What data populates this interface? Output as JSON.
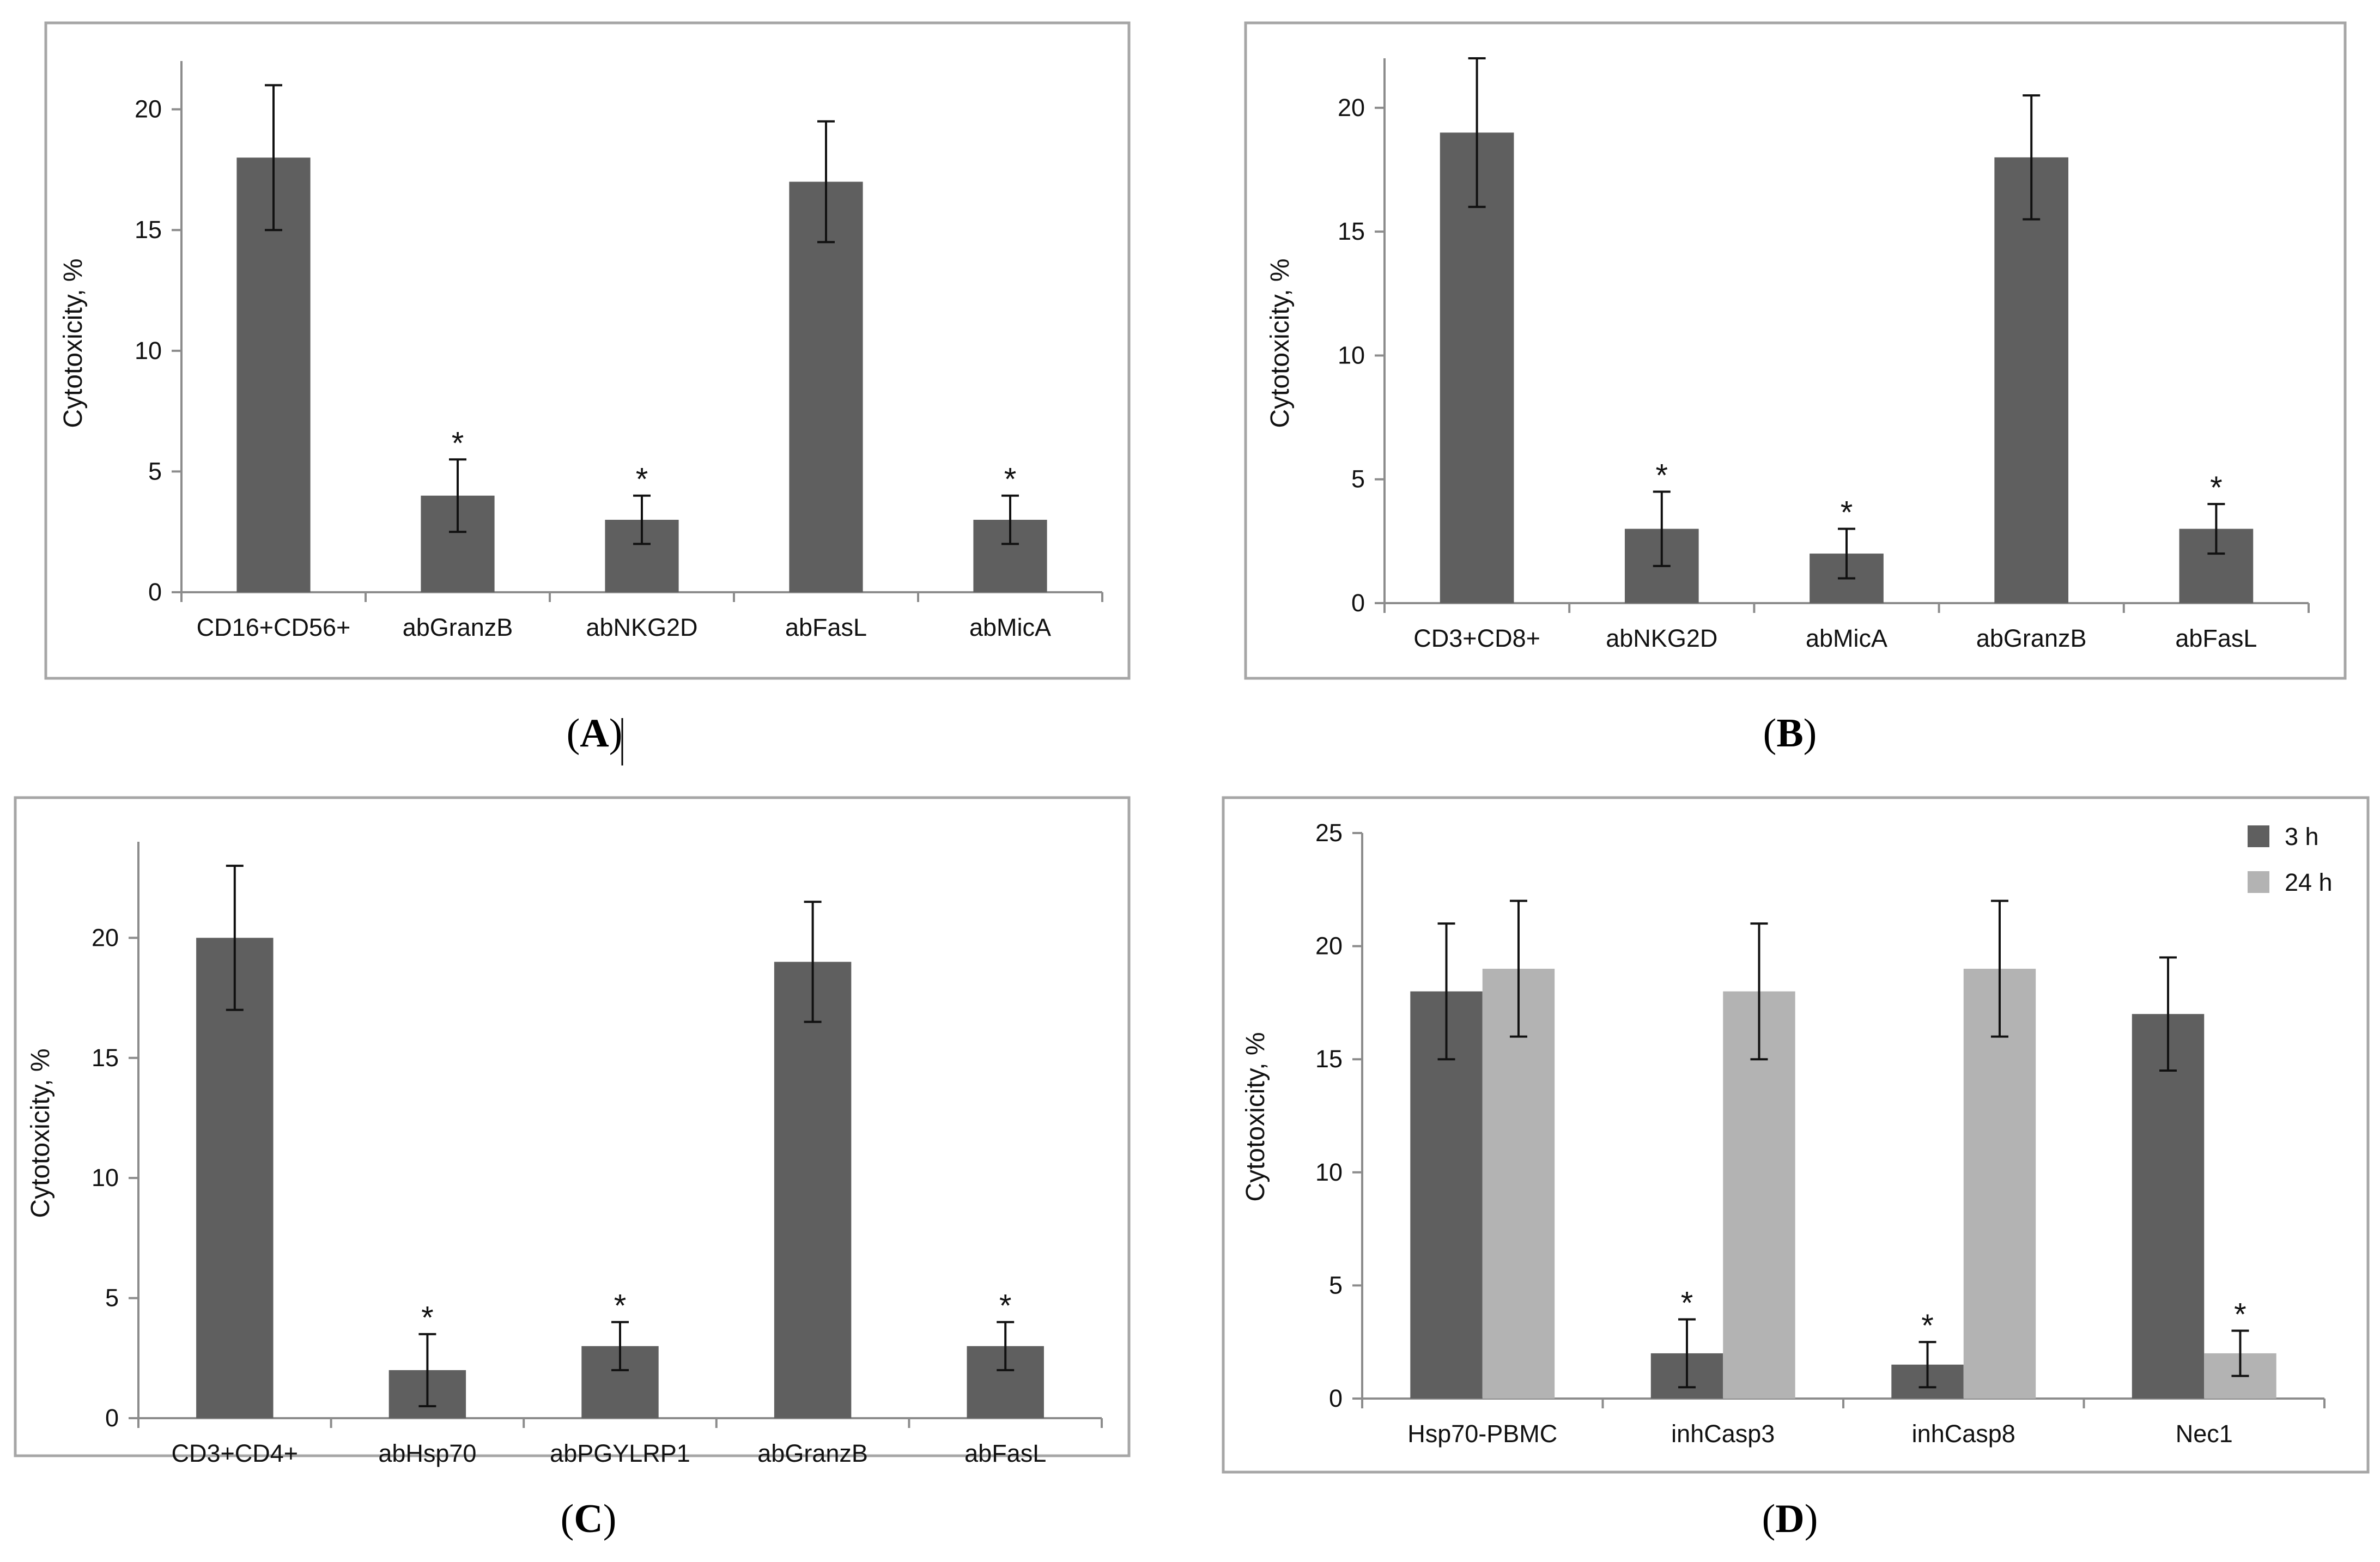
{
  "colors": {
    "bar_dark": "#5f5f5f",
    "bar_light": "#b3b3b3",
    "frame": "#a6a6a6",
    "axis": "#8c8c8c",
    "error_bar": "#111111"
  },
  "chart_data": [
    {
      "panel": "A",
      "type": "bar",
      "ylabel": "Cytotoxicity, %",
      "xlabel": "",
      "ylim": [
        0,
        22
      ],
      "yticks": [
        0,
        5,
        10,
        15,
        20
      ],
      "categories": [
        "CD16+CD56+",
        "abGranzB",
        "abNKG2D",
        "abFasL",
        "abMicA"
      ],
      "series": [
        {
          "name": "",
          "values": [
            18,
            4,
            3,
            17,
            3
          ],
          "errors": [
            3,
            1.5,
            1,
            2.5,
            1
          ],
          "significant": [
            false,
            true,
            true,
            false,
            true
          ]
        }
      ],
      "significance_marker": "*",
      "caption": {
        "open": "(",
        "letter": "A",
        "close": ")"
      }
    },
    {
      "panel": "B",
      "type": "bar",
      "ylabel": "Cytotoxicity, %",
      "xlabel": "",
      "ylim": [
        0,
        22
      ],
      "yticks": [
        0,
        5,
        10,
        15,
        20
      ],
      "categories": [
        "CD3+CD8+",
        "abNKG2D",
        "abMicA",
        "abGranzB",
        "abFasL"
      ],
      "series": [
        {
          "name": "",
          "values": [
            19,
            3,
            2,
            18,
            3
          ],
          "errors": [
            3,
            1.5,
            1,
            2.5,
            1
          ],
          "significant": [
            false,
            true,
            true,
            false,
            true
          ]
        }
      ],
      "significance_marker": "*",
      "caption": {
        "open": "(",
        "letter": "B",
        "close": ")"
      }
    },
    {
      "panel": "C",
      "type": "bar",
      "ylabel": "Cytotoxicity, %",
      "xlabel": "",
      "ylim": [
        0,
        24
      ],
      "yticks": [
        0,
        5,
        10,
        15,
        20
      ],
      "categories": [
        "CD3+CD4+",
        "abHsp70",
        "abPGYLRP1",
        "abGranzB",
        "abFasL"
      ],
      "series": [
        {
          "name": "",
          "values": [
            20,
            2,
            3,
            19,
            3
          ],
          "errors": [
            3,
            1.5,
            1,
            2.5,
            1
          ],
          "significant": [
            false,
            true,
            true,
            false,
            true
          ]
        }
      ],
      "significance_marker": "*",
      "caption": {
        "open": "(",
        "letter": "C",
        "close": ")"
      }
    },
    {
      "panel": "D",
      "type": "bar",
      "ylabel": "Cytotoxicity, %",
      "xlabel": "",
      "ylim": [
        0,
        25
      ],
      "yticks": [
        0,
        5,
        10,
        15,
        20,
        25
      ],
      "categories": [
        "Hsp70-PBMC",
        "inhCasp3",
        "inhCasp8",
        "Nec1"
      ],
      "series": [
        {
          "name": "3 h",
          "values": [
            18,
            2,
            1.5,
            17
          ],
          "errors": [
            3,
            1.5,
            1,
            2.5
          ],
          "significant": [
            false,
            true,
            true,
            false
          ]
        },
        {
          "name": "24 h",
          "values": [
            19,
            18,
            19,
            2
          ],
          "errors": [
            3,
            3,
            3,
            1
          ],
          "significant": [
            false,
            false,
            false,
            true
          ]
        }
      ],
      "legend": "top-right",
      "significance_marker": "*",
      "caption": {
        "open": "(",
        "letter": "D",
        "close": ")"
      }
    }
  ]
}
